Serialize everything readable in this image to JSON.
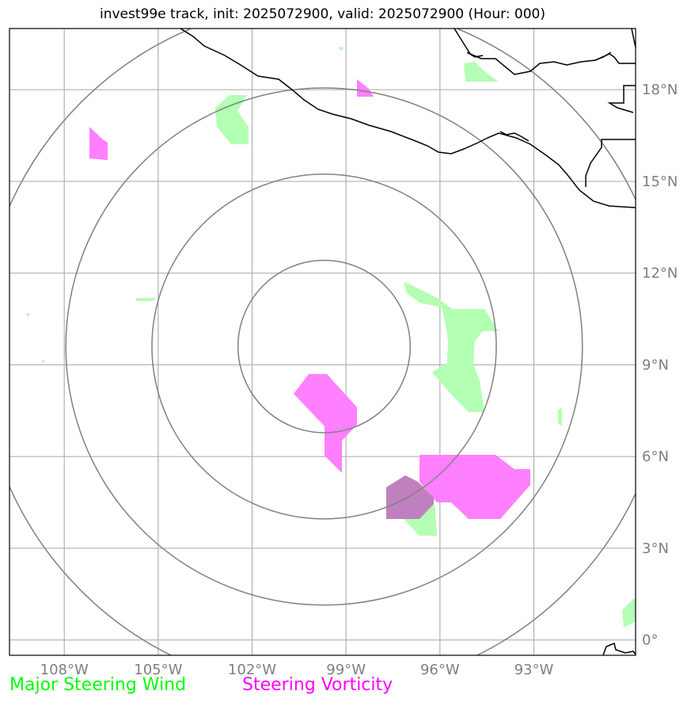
{
  "title": "invest99e track, init: 2025072900, valid: 2025072900 (Hour: 000)",
  "map": {
    "lon_range": [
      -109.75,
      -89.75
    ],
    "lat_range": [
      -0.5,
      20.0
    ],
    "lon_ticks": [
      {
        "value": -108,
        "label": "108°W"
      },
      {
        "value": -105,
        "label": "105°W"
      },
      {
        "value": -102,
        "label": "102°W"
      },
      {
        "value": -99,
        "label": "99°W"
      },
      {
        "value": -96,
        "label": "96°W"
      },
      {
        "value": -93,
        "label": "93°W"
      }
    ],
    "lat_ticks": [
      {
        "value": 0,
        "label": "0°"
      },
      {
        "value": 3,
        "label": "3°N"
      },
      {
        "value": 6,
        "label": "6°N"
      },
      {
        "value": 9,
        "label": "9°N"
      },
      {
        "value": 12,
        "label": "12°N"
      },
      {
        "value": 15,
        "label": "15°N"
      },
      {
        "value": 18,
        "label": "18°N"
      }
    ],
    "storm_center": {
      "lon": -99.7,
      "lat": 9.6
    },
    "range_rings_deg": [
      2.75,
      5.5,
      8.25,
      11.0
    ],
    "grid": true,
    "colors": {
      "wind": "#b3ffb3",
      "vorticity": "#ff80ff",
      "overlap": "#c080c0",
      "grid": "#b0b0b0",
      "ring": "#808080",
      "coast": "#000000"
    }
  },
  "legend": {
    "wind_label": "Major Steering Wind",
    "vorticity_label": "Steering Vorticity",
    "wind_color": "#00ff00",
    "vorticity_color": "#ff00ff"
  }
}
